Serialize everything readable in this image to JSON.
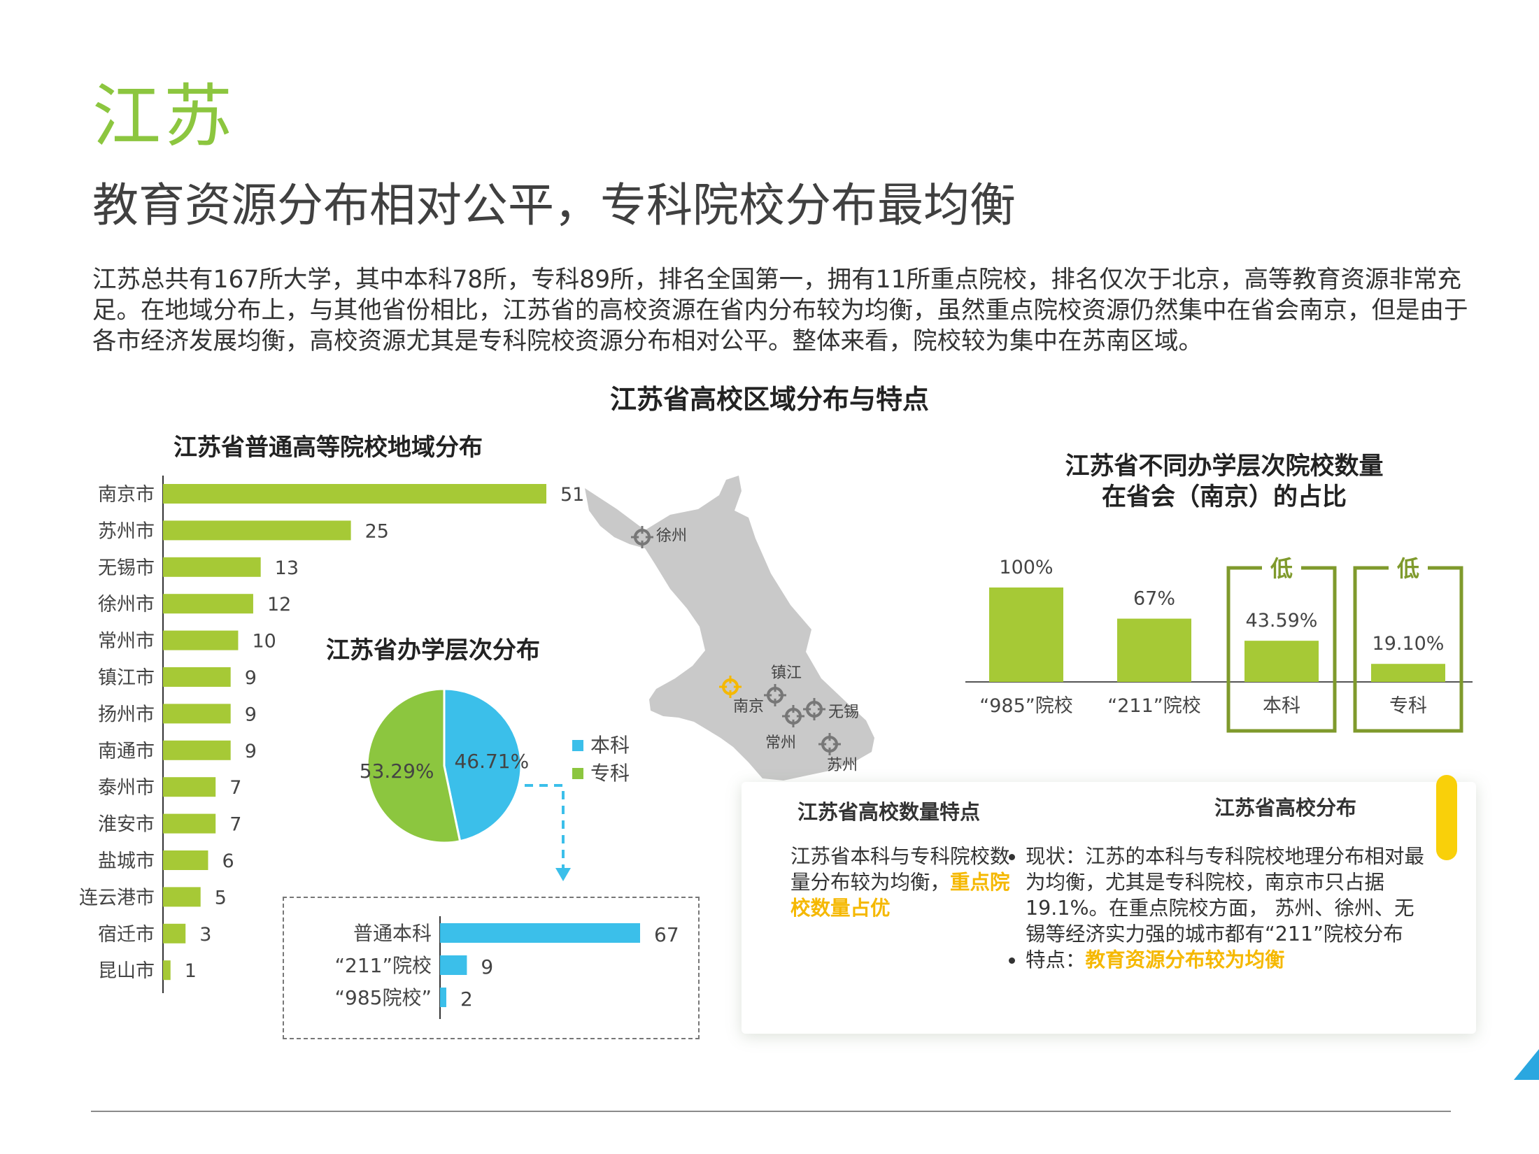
{
  "header": {
    "province": "江苏",
    "headline": "教育资源分布相对公平，专科院校分布最均衡",
    "intro": "江苏总共有167所大学，其中本科78所，专科89所，排名全国第一，拥有11所重点院校，排名仅次于北京，高等教育资源非常充足。在地域分布上，与其他省份相比，江苏省的高校资源在省内分布较为均衡，虽然重点院校资源仍然集中在省会南京，但是由于各市经济发展均衡，高校资源尤其是专科院校资源分布相对公平。整体来看，院校较为集中在苏南区域。"
  },
  "main_title": "江苏省高校区域分布与特点",
  "colors": {
    "green": "#a6c936",
    "blue": "#3bbfea",
    "frame": "#7f9a2c",
    "highlight": "#f5b800",
    "map": "#c9c9c9"
  },
  "map": {
    "icon": "map-pin-icon",
    "cities": [
      {
        "name": "徐州"
      },
      {
        "name": "镇江"
      },
      {
        "name": "南京"
      },
      {
        "name": "无锡"
      },
      {
        "name": "常州"
      },
      {
        "name": "苏州"
      }
    ]
  },
  "chart_data": [
    {
      "type": "bar",
      "orientation": "horizontal",
      "title": "江苏省普通高等院校地域分布",
      "categories": [
        "南京市",
        "苏州市",
        "无锡市",
        "徐州市",
        "常州市",
        "镇江市",
        "扬州市",
        "南通市",
        "泰州市",
        "淮安市",
        "盐城市",
        "连云港市",
        "宿迁市",
        "昆山市"
      ],
      "values": [
        51,
        25,
        13,
        12,
        10,
        9,
        9,
        9,
        7,
        7,
        6,
        5,
        3,
        1
      ],
      "xlim": [
        0,
        51
      ],
      "color": "#a6c936"
    },
    {
      "type": "pie",
      "title": "江苏省办学层次分布",
      "slices": [
        {
          "label": "本科",
          "value": 46.71,
          "display": "46.71%",
          "color": "#3bbfea"
        },
        {
          "label": "专科",
          "value": 53.29,
          "display": "53.29%",
          "color": "#8cc63f"
        }
      ],
      "legend": "right"
    },
    {
      "type": "bar",
      "orientation": "horizontal",
      "title": "",
      "categories": [
        "普通本科",
        "“211”院校",
        "“985院校”"
      ],
      "values": [
        67,
        9,
        2
      ],
      "xlim": [
        0,
        67
      ],
      "color": "#3bbfea"
    },
    {
      "type": "bar",
      "title": "江苏省不同办学层次院校数量在省会（南京）的占比",
      "title_lines": [
        "江苏省不同办学层次院校数量",
        "在省会（南京）的占比"
      ],
      "categories": [
        "“985”院校",
        "“211”院校",
        "本科",
        "专科"
      ],
      "values": [
        100,
        67,
        43.59,
        19.1
      ],
      "labels": [
        "100%",
        "67%",
        "43.59%",
        "19.10%"
      ],
      "annotations": [
        {
          "category": "本科",
          "text": "低"
        },
        {
          "category": "专科",
          "text": "低"
        }
      ],
      "ylim": [
        0,
        100
      ],
      "color": "#a6c936"
    }
  ],
  "card": {
    "left_heading": "江苏省高校数量特点",
    "left_text": "江苏省本科与专科院校数量分布较为均衡，",
    "left_highlight": "重点院校数量占优",
    "right_heading": "江苏省高校分布",
    "bullet1": "现状：江苏的本科与专科院校地理分布相对最为均衡，尤其是专科院校，南京市只占据19.1%。在重点院校方面， 苏州、徐州、无锡等经济实力强的城市都有“211”院校分布",
    "bullet2_prefix": "特点：",
    "bullet2_highlight": "教育资源分布较为均衡"
  }
}
